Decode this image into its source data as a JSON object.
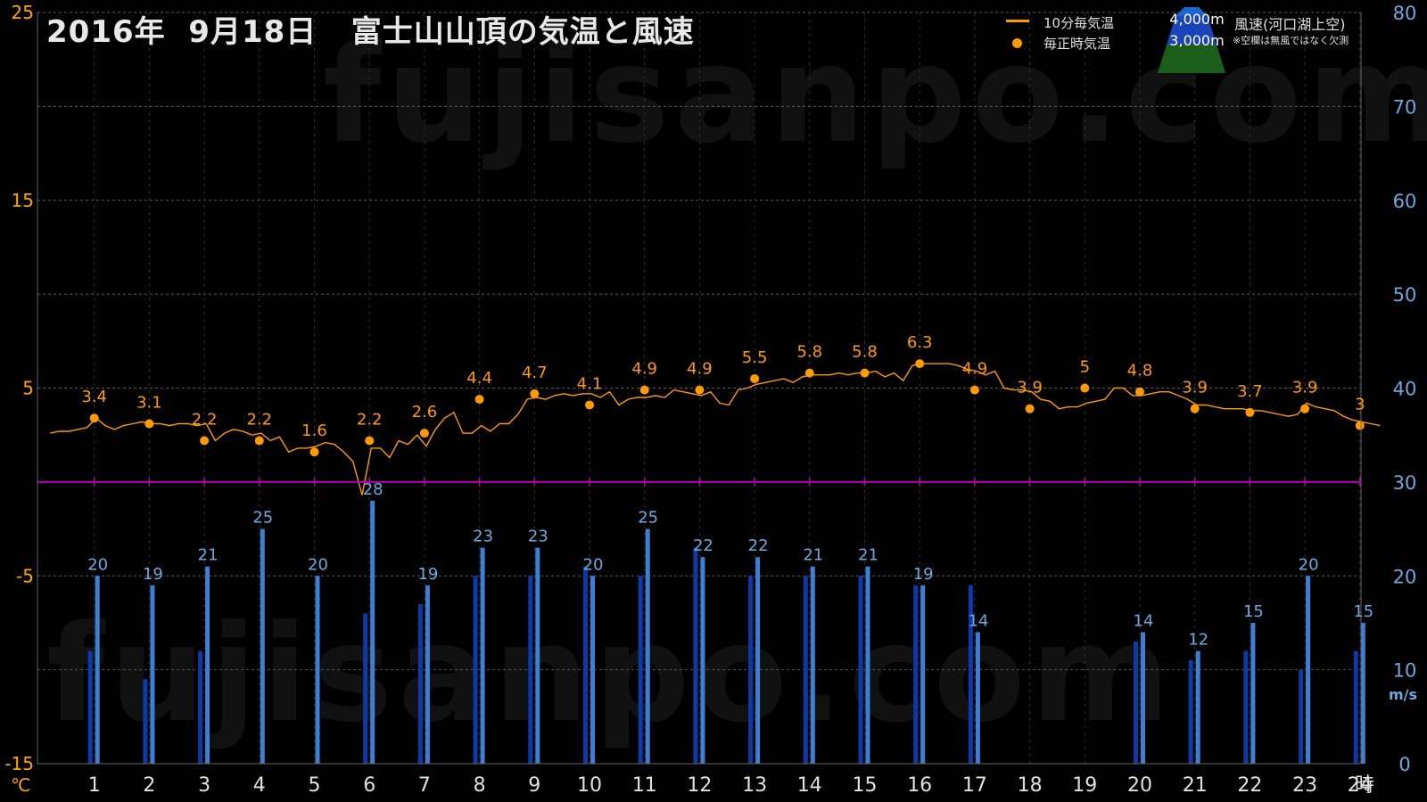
{
  "title": "2016年  9月18日   富士山山頂の気温と風速",
  "watermark": "fujisanpo.com",
  "legend": {
    "temp10": "10分毎気温",
    "hourly": "毎正時気温",
    "alt4000": "4,000m",
    "alt3000": "3,000m",
    "wind_label": "風速(河口湖上空)",
    "note": "※空欄は無風ではなく欠測"
  },
  "colors": {
    "temp": "#ff9a00",
    "wind4000": "#3d7fd4",
    "wind3000": "#0e3aa8",
    "zero_line": "#b000b0",
    "left_axis": "#ffa500",
    "right_axis": "#6fa8dc",
    "grid": "#5a5a5a"
  },
  "chart_data": {
    "type": "line",
    "x_unit": "時",
    "x_ticks": [
      1,
      2,
      3,
      4,
      5,
      6,
      7,
      8,
      9,
      10,
      11,
      12,
      13,
      14,
      15,
      16,
      17,
      18,
      19,
      20,
      21,
      22,
      23,
      24
    ],
    "left_axis": {
      "unit": "℃",
      "ticks": [
        -15,
        -5,
        5,
        15,
        25
      ],
      "range": [
        -15,
        25
      ]
    },
    "right_axis": {
      "unit": "m/s",
      "ticks": [
        0,
        10,
        20,
        30,
        40,
        50,
        60,
        70,
        80
      ],
      "range": [
        0,
        80
      ]
    },
    "hourly_temp": {
      "hours": [
        1,
        2,
        3,
        4,
        5,
        6,
        7,
        8,
        9,
        10,
        11,
        12,
        13,
        14,
        15,
        16,
        17,
        18,
        19,
        20,
        21,
        22,
        23,
        24
      ],
      "values": [
        3.4,
        3.1,
        2.2,
        2.2,
        1.6,
        2.2,
        2.6,
        4.4,
        4.7,
        4.1,
        4.9,
        4.9,
        5.5,
        5.8,
        5.8,
        6.3,
        4.9,
        3.9,
        5,
        4.8,
        3.9,
        3.7,
        3.9,
        3
      ]
    },
    "temp_10min": {
      "start_hour": 0.2,
      "step_hours": 0.166667,
      "values": [
        2.6,
        2.7,
        2.7,
        2.8,
        2.9,
        3.4,
        3.0,
        2.8,
        3.0,
        3.1,
        3.2,
        3.1,
        3.1,
        3.0,
        3.1,
        3.1,
        3.0,
        3.1,
        2.2,
        2.6,
        2.8,
        2.7,
        2.5,
        2.6,
        2.2,
        2.4,
        1.6,
        1.8,
        1.8,
        1.9,
        2.1,
        2.0,
        1.6,
        1.1,
        -0.7,
        1.8,
        1.8,
        1.3,
        2.2,
        2.0,
        2.5,
        1.9,
        2.8,
        3.4,
        3.7,
        2.6,
        2.6,
        3.0,
        2.7,
        3.1,
        3.1,
        3.6,
        4.4,
        4.5,
        4.4,
        4.6,
        4.7,
        4.6,
        4.7,
        4.7,
        4.5,
        4.8,
        4.1,
        4.4,
        4.5,
        4.5,
        4.6,
        4.5,
        4.9,
        4.8,
        4.7,
        4.6,
        4.8,
        4.2,
        4.1,
        4.9,
        5.0,
        5.2,
        5.3,
        5.4,
        5.5,
        5.3,
        5.6,
        5.7,
        5.7,
        5.7,
        5.8,
        5.7,
        5.8,
        5.8,
        5.9,
        5.6,
        5.8,
        5.4,
        6.2,
        6.3,
        6.3,
        6.3,
        6.3,
        6.2,
        6.0,
        5.9,
        5.7,
        5.9,
        5.0,
        4.9,
        4.9,
        4.8,
        4.4,
        4.3,
        3.9,
        4.0,
        4.0,
        4.2,
        4.3,
        4.4,
        5.0,
        5.0,
        4.6,
        4.6,
        4.7,
        4.8,
        4.8,
        4.6,
        4.4,
        4.1,
        4.1,
        4.0,
        3.9,
        3.9,
        3.9,
        3.8,
        3.8,
        3.7,
        3.6,
        3.5,
        3.6,
        4.2,
        4.0,
        3.9,
        3.8,
        3.5,
        3.3,
        3.2,
        3.1,
        3.0
      ]
    },
    "wind_4000m": {
      "hours": [
        1,
        2,
        3,
        4,
        5,
        6,
        7,
        8,
        9,
        10,
        11,
        12,
        13,
        14,
        15,
        16,
        17,
        18,
        19,
        20,
        21,
        22,
        23,
        24
      ],
      "values": [
        20,
        19,
        21,
        25,
        20,
        28,
        19,
        23,
        23,
        20,
        25,
        22,
        22,
        21,
        21,
        19,
        14,
        null,
        null,
        14,
        12,
        15,
        20,
        15
      ]
    },
    "wind_3000m": {
      "hours": [
        1,
        2,
        3,
        4,
        5,
        6,
        7,
        8,
        9,
        10,
        11,
        12,
        13,
        14,
        15,
        16,
        17,
        18,
        19,
        20,
        21,
        22,
        23,
        24
      ],
      "values": [
        12,
        9,
        12,
        null,
        null,
        16,
        17,
        20,
        20,
        21,
        20,
        23,
        20,
        20,
        20,
        19,
        19,
        null,
        null,
        13,
        11,
        12,
        10,
        12
      ]
    }
  }
}
